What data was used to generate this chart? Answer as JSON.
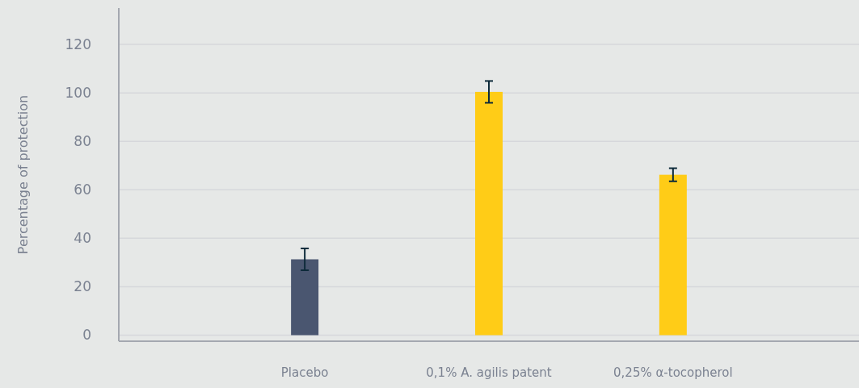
{
  "chart_data": {
    "type": "bar",
    "ylabel": "Percentage of protection",
    "categories": [
      "Placebo",
      "0,1% A. agilis patent",
      "0,25% α-tocopherol"
    ],
    "values": [
      31.3,
      100.4,
      66.2
    ],
    "colors": [
      "#4a5670",
      "#ffcc17",
      "#ffcc17"
    ],
    "errors": [
      4.5,
      4.5,
      2.7
    ],
    "ylim": [
      -2.5,
      135
    ],
    "yticks": [
      0,
      20,
      40,
      60,
      80,
      100,
      120
    ],
    "grid": "y"
  }
}
